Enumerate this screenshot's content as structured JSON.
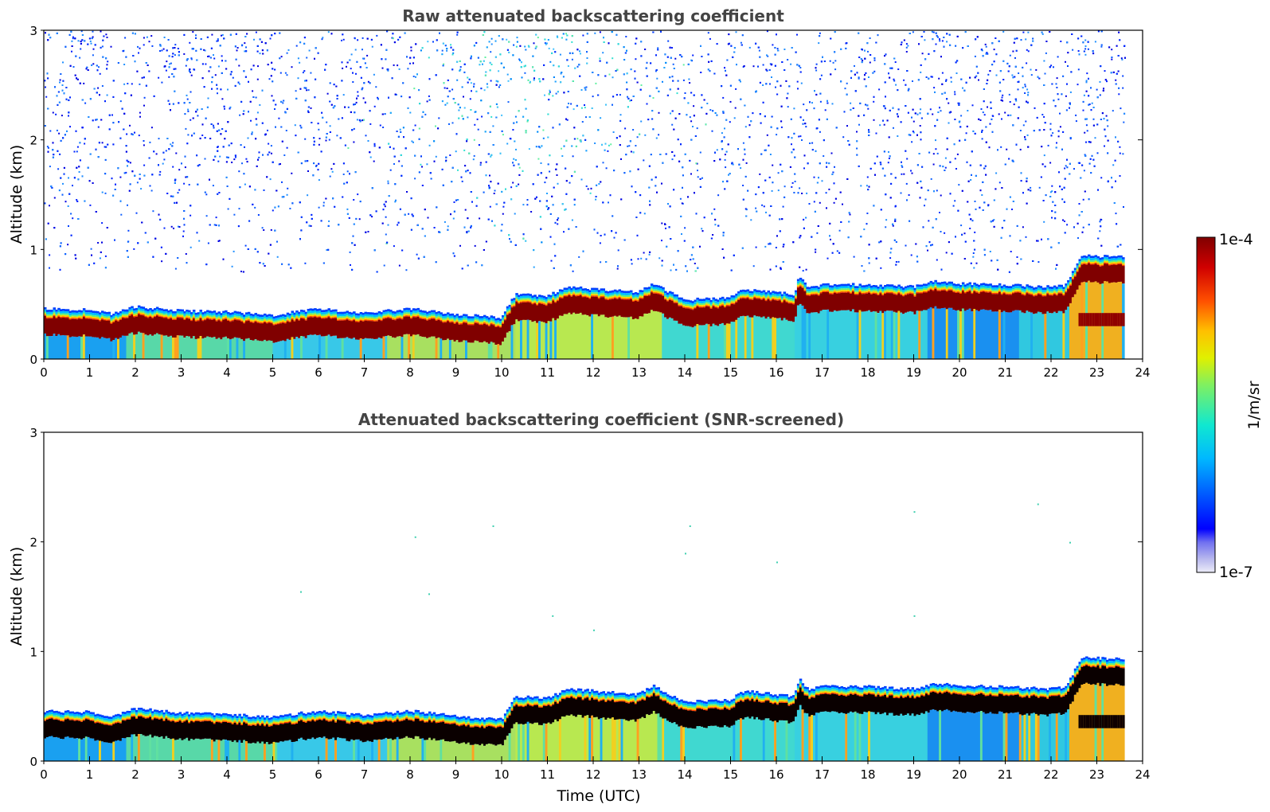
{
  "chart_data": [
    {
      "type": "heatmap",
      "title": "Raw attenuated backscattering coefficient",
      "xlabel": "",
      "ylabel": "Altitude (km)",
      "xlim": [
        0,
        24
      ],
      "ylim": [
        0,
        3
      ],
      "xticks": [
        "0",
        "1",
        "2",
        "3",
        "4",
        "5",
        "6",
        "7",
        "8",
        "9",
        "10",
        "11",
        "12",
        "13",
        "14",
        "15",
        "16",
        "17",
        "18",
        "19",
        "20",
        "21",
        "22",
        "23",
        "24"
      ],
      "yticks": [
        "0",
        "1",
        "2",
        "3"
      ],
      "data_end_hour": 23.6,
      "layer_top_km": [
        [
          0,
          0.45
        ],
        [
          1,
          0.44
        ],
        [
          1.5,
          0.4
        ],
        [
          2,
          0.47
        ],
        [
          3,
          0.43
        ],
        [
          4,
          0.42
        ],
        [
          5,
          0.39
        ],
        [
          6,
          0.45
        ],
        [
          7,
          0.41
        ],
        [
          8,
          0.45
        ],
        [
          9,
          0.4
        ],
        [
          10,
          0.37
        ],
        [
          10.3,
          0.58
        ],
        [
          11,
          0.57
        ],
        [
          11.5,
          0.65
        ],
        [
          12,
          0.63
        ],
        [
          13,
          0.6
        ],
        [
          13.3,
          0.68
        ],
        [
          14,
          0.53
        ],
        [
          15,
          0.55
        ],
        [
          15.3,
          0.63
        ],
        [
          16,
          0.6
        ],
        [
          16.4,
          0.58
        ],
        [
          16.5,
          0.75
        ],
        [
          16.7,
          0.64
        ],
        [
          17,
          0.67
        ],
        [
          18,
          0.67
        ],
        [
          19,
          0.65
        ],
        [
          19.5,
          0.7
        ],
        [
          20,
          0.68
        ],
        [
          21,
          0.67
        ],
        [
          22,
          0.65
        ],
        [
          22.3,
          0.66
        ],
        [
          22.7,
          0.95
        ],
        [
          23,
          0.93
        ],
        [
          23.6,
          0.92
        ]
      ],
      "noise_present": true
    },
    {
      "type": "heatmap",
      "title": "Attenuated backscattering coefficient (SNR-screened)",
      "xlabel": "Time (UTC)",
      "ylabel": "Altitude (km)",
      "xlim": [
        0,
        24
      ],
      "ylim": [
        0,
        3
      ],
      "xticks": [
        "0",
        "1",
        "2",
        "3",
        "4",
        "5",
        "6",
        "7",
        "8",
        "9",
        "10",
        "11",
        "12",
        "13",
        "14",
        "15",
        "16",
        "17",
        "18",
        "19",
        "20",
        "21",
        "22",
        "23",
        "24"
      ],
      "yticks": [
        "0",
        "1",
        "2",
        "3"
      ],
      "data_end_hour": 23.6,
      "noise_present": false
    }
  ],
  "colorbar": {
    "label": "1/m/sr",
    "max_label": "1e-4",
    "min_label": "1e-7",
    "colors": [
      "#e8e8f8",
      "#c4c4ee",
      "#9090e8",
      "#0000ff",
      "#0050ff",
      "#00a0ff",
      "#00e0e0",
      "#40f0b0",
      "#a0f050",
      "#f0f000",
      "#ffa000",
      "#ff3000",
      "#d00000",
      "#800000"
    ]
  }
}
